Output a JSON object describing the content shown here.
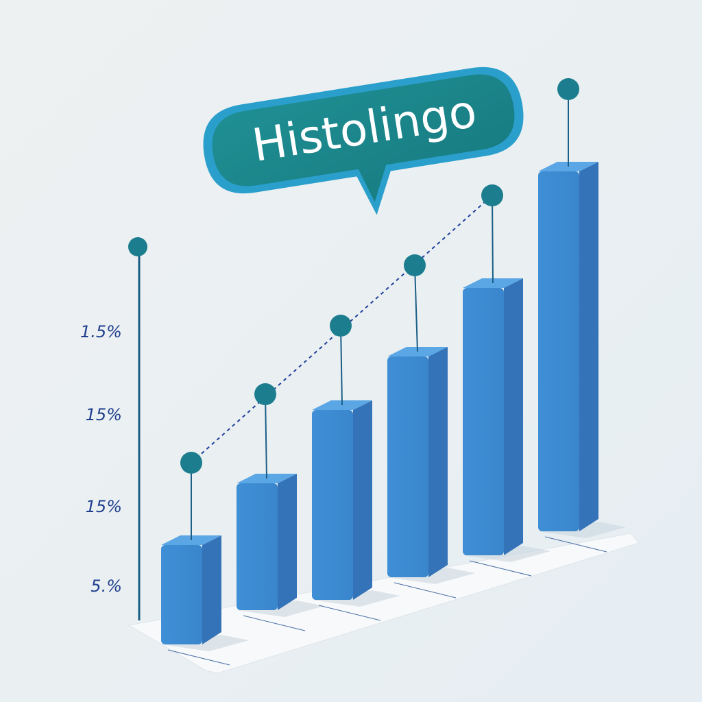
{
  "bubble": {
    "text": "Histolingo"
  },
  "axis": {
    "labels": [
      "1.5%",
      "15%",
      "15%",
      "5.%"
    ]
  }
}
